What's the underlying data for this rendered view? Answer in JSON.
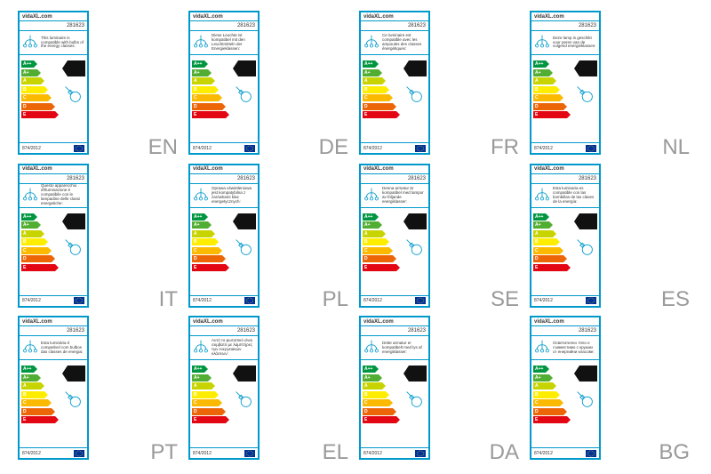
{
  "brand": "vidaXL.com",
  "product_code": "281623",
  "regulation": "874/2012",
  "energy_classes": [
    {
      "label": "A++",
      "color": "#009640",
      "width": 14
    },
    {
      "label": "A+",
      "color": "#52ae32",
      "width": 18
    },
    {
      "label": "A",
      "color": "#c8d400",
      "width": 22
    },
    {
      "label": "B",
      "color": "#ffed00",
      "width": 26
    },
    {
      "label": "C",
      "color": "#fbba00",
      "width": 30
    },
    {
      "label": "D",
      "color": "#ec6608",
      "width": 34
    },
    {
      "label": "E",
      "color": "#e30613",
      "width": 38
    }
  ],
  "labels": [
    {
      "lang": "EN",
      "text": "This luminaire is compatible with bulbs of the energy classes:"
    },
    {
      "lang": "DE",
      "text": "Diese Leuchte ist kompatibel mit den Leuchtmitteln der Energieklassen:"
    },
    {
      "lang": "FR",
      "text": "Ce luminaire est compatible avec les ampoules des classes énergétiques:"
    },
    {
      "lang": "NL",
      "text": "Deze lamp is geschikt voor peren van de volgend energieklassen:"
    },
    {
      "lang": "IT",
      "text": "Questo apparecchio d'illuminazione è compatibile con le lampadine delle classi energetiche:"
    },
    {
      "lang": "PL",
      "text": "Oprawa oświetleniowa jest kompatybilna z żarówkami klas energetycznych:"
    },
    {
      "lang": "SE",
      "text": "Denna armatur är kompatibel med lampor av följande energiklasser:"
    },
    {
      "lang": "ES",
      "text": "Esta luminaria es compatible con las bombillas de las clases de la energía:"
    },
    {
      "lang": "PT",
      "text": "Esta luminária é compatível com bulbos das classes de energia:"
    },
    {
      "lang": "EL",
      "text": "Αυτό το φωτιστικό είναι συμβατό με λαμπτήρες των ενεργειακών κλάσεων:"
    },
    {
      "lang": "DA",
      "text": "Dette armatur er kompatibelt med lys af energiklasser:"
    },
    {
      "lang": "BG",
      "text": "Осветително тяло е съвместимо с крушки от енергийни класове:"
    }
  ]
}
